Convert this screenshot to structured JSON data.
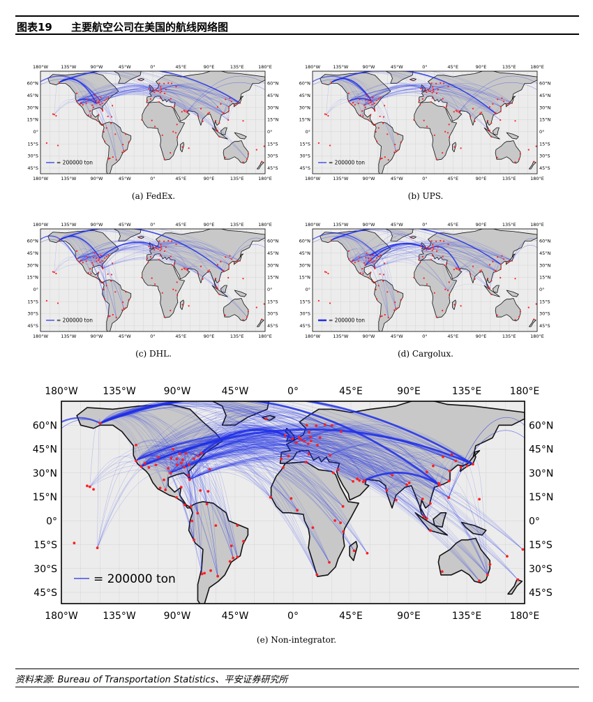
{
  "header": {
    "figure_number": "图表19",
    "title": "主要航空公司在美国的航线网络图"
  },
  "legend": {
    "label": "= 200000 ton"
  },
  "lon_ticks": [
    "180°W",
    "135°W",
    "90°W",
    "45°W",
    "0°",
    "45°E",
    "90°E",
    "135°E",
    "180°E"
  ],
  "lat_ticks": [
    "60°N",
    "45°N",
    "30°N",
    "15°N",
    "0°",
    "15°S",
    "30°S",
    "45°S"
  ],
  "panels": [
    {
      "id": "a",
      "caption": "(a) FedEx."
    },
    {
      "id": "b",
      "caption": "(b) UPS."
    },
    {
      "id": "c",
      "caption": "(c) DHL."
    },
    {
      "id": "d",
      "caption": "(d) Cargolux."
    },
    {
      "id": "e",
      "caption": "(e) Non-integrator."
    }
  ],
  "colors": {
    "route": "#1f2fe6",
    "airport": "#ff2020",
    "land": "#c8c8c8",
    "ocean": "#ececec"
  },
  "footer": {
    "source": "资料来源: Bureau of Transportation Statistics、平安证券研究所"
  }
}
